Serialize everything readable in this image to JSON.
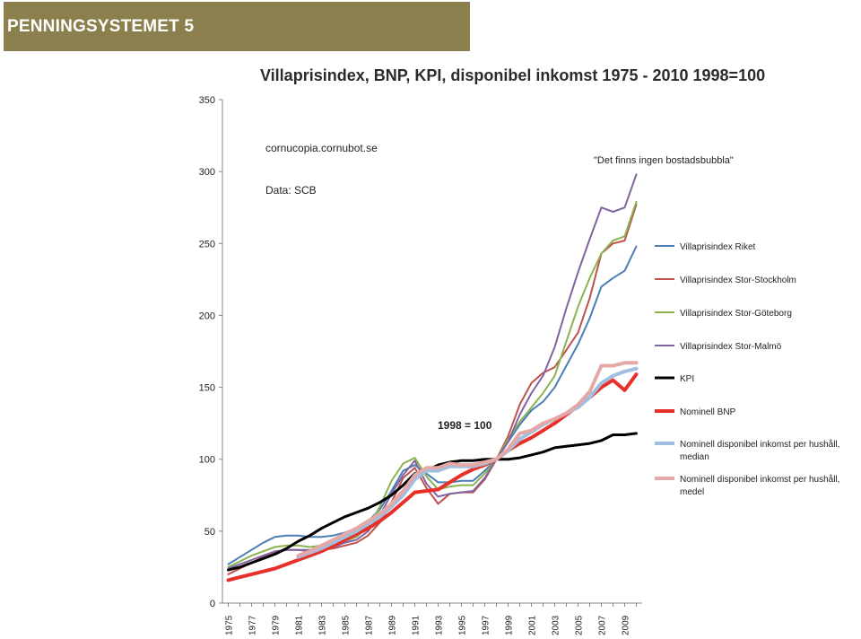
{
  "header": {
    "title": "PENNINGSYSTEMET 5",
    "background": "#8b7f4e"
  },
  "chart_data": {
    "type": "line",
    "title": "Villaprisindex, BNP, KPI, disponibel inkomst 1975 - 2010 1998=100",
    "annotations": {
      "source_site": "cornucopia.cornubot.se",
      "data_source": "Data: SCB",
      "quote": "\"Det finns ingen bostadsbubbla\"",
      "base_label": "1998 = 100"
    },
    "xlabel": "",
    "ylabel": "",
    "ylim": [
      0,
      350
    ],
    "yticks": [
      0,
      50,
      100,
      150,
      200,
      250,
      300,
      350
    ],
    "xticks": [
      "1975",
      "1977",
      "1979",
      "1981",
      "1983",
      "1985",
      "1987",
      "1989",
      "1991",
      "1993",
      "1995",
      "1997",
      "1999",
      "2001",
      "2003",
      "2005",
      "2007",
      "2009"
    ],
    "grid": false,
    "legend_position": "right",
    "x": [
      1975,
      1976,
      1977,
      1978,
      1979,
      1980,
      1981,
      1982,
      1983,
      1984,
      1985,
      1986,
      1987,
      1988,
      1989,
      1990,
      1991,
      1992,
      1993,
      1994,
      1995,
      1996,
      1997,
      1998,
      1999,
      2000,
      2001,
      2002,
      2003,
      2004,
      2005,
      2006,
      2007,
      2008,
      2009,
      2010
    ],
    "series": [
      {
        "name": "Villaprisindex Riket",
        "color": "#4a7fb5",
        "width": 2,
        "values": [
          27,
          32,
          37,
          42,
          46,
          47,
          47,
          46,
          46,
          47,
          49,
          52,
          57,
          65,
          78,
          92,
          96,
          90,
          84,
          84,
          85,
          85,
          92,
          100,
          112,
          124,
          134,
          140,
          150,
          165,
          180,
          198,
          220,
          226,
          231,
          248
        ]
      },
      {
        "name": "Villaprisindex Stor-Stockholm",
        "color": "#c0504d",
        "width": 2,
        "values": [
          20,
          24,
          28,
          32,
          35,
          37,
          37,
          36,
          37,
          38,
          40,
          42,
          47,
          56,
          70,
          87,
          94,
          80,
          69,
          76,
          77,
          77,
          86,
          100,
          116,
          138,
          153,
          160,
          164,
          176,
          188,
          212,
          243,
          250,
          252,
          277
        ]
      },
      {
        "name": "Villaprisindex Stor-Göteborg",
        "color": "#8ab34f",
        "width": 2,
        "values": [
          25,
          29,
          33,
          36,
          39,
          40,
          40,
          39,
          40,
          41,
          43,
          46,
          53,
          67,
          85,
          97,
          101,
          88,
          79,
          81,
          82,
          82,
          90,
          100,
          114,
          126,
          136,
          146,
          158,
          182,
          206,
          226,
          243,
          252,
          255,
          279
        ]
      },
      {
        "name": "Villaprisindex Stor-Malmö",
        "color": "#8064a2",
        "width": 2,
        "values": [
          24,
          27,
          30,
          33,
          36,
          37,
          37,
          37,
          38,
          39,
          42,
          44,
          50,
          61,
          76,
          89,
          99,
          83,
          74,
          76,
          77,
          78,
          87,
          100,
          112,
          131,
          146,
          158,
          178,
          205,
          230,
          253,
          275,
          272,
          275,
          298
        ]
      },
      {
        "name": "KPI",
        "color": "#000000",
        "width": 3,
        "values": [
          23,
          25,
          28,
          31,
          34,
          38,
          43,
          47,
          52,
          56,
          60,
          63,
          66,
          70,
          75,
          82,
          90,
          92,
          96,
          98,
          99,
          99,
          100,
          100,
          100,
          101,
          103,
          105,
          108,
          109,
          110,
          111,
          113,
          117,
          117,
          118
        ]
      },
      {
        "name": "Nominell BNP",
        "color": "#e8302a",
        "width": 4,
        "values": [
          16,
          18,
          20,
          22,
          24,
          27,
          30,
          33,
          36,
          40,
          44,
          48,
          52,
          57,
          63,
          70,
          77,
          78,
          79,
          84,
          89,
          93,
          96,
          100,
          106,
          111,
          115,
          120,
          125,
          131,
          137,
          143,
          150,
          155,
          148,
          159
        ]
      },
      {
        "name": "Nominell disponibel inkomst per hushåll, median",
        "color": "#9fbfe0",
        "width": 4,
        "values": [
          null,
          null,
          null,
          null,
          null,
          null,
          32,
          35,
          38,
          42,
          46,
          50,
          55,
          60,
          67,
          75,
          86,
          92,
          92,
          95,
          95,
          95,
          97,
          100,
          106,
          114,
          119,
          124,
          128,
          132,
          136,
          143,
          153,
          158,
          161,
          163
        ]
      },
      {
        "name": "Nominell disponibel inkomst per hushåll, medel",
        "color": "#e4a8a6",
        "width": 4,
        "values": [
          null,
          null,
          null,
          null,
          null,
          null,
          33,
          36,
          40,
          44,
          48,
          52,
          57,
          62,
          69,
          78,
          89,
          94,
          94,
          97,
          96,
          96,
          98,
          100,
          107,
          118,
          120,
          125,
          128,
          132,
          138,
          147,
          165,
          165,
          167,
          167
        ]
      }
    ]
  }
}
